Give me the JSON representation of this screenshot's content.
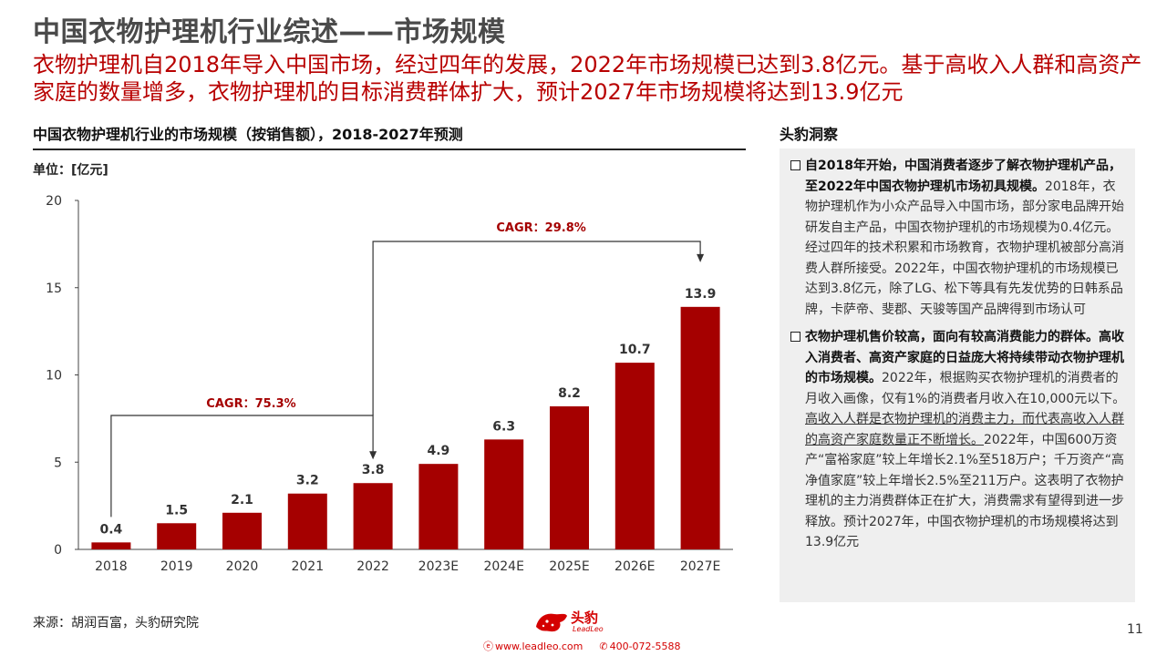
{
  "page": {
    "title": "中国衣物护理机行业综述——市场规模",
    "subtitle": "衣物护理机自2018年导入中国市场，经过四年的发展，2022年市场规模已达到3.8亿元。基于高收入人群和高资产家庭的数量增多，衣物护理机的目标消费群体扩大，预计2027年市场规模将达到13.9亿元",
    "page_number": "11",
    "source": "来源：胡润百富，头豹研究院"
  },
  "chart_data": {
    "type": "bar",
    "title": "中国衣物护理机行业的市场规模（按销售额），2018-2027年预测",
    "unit_label": "单位：[亿元]",
    "categories": [
      "2018",
      "2019",
      "2020",
      "2021",
      "2022",
      "2023E",
      "2024E",
      "2025E",
      "2026E",
      "2027E"
    ],
    "values": [
      0.4,
      1.5,
      2.1,
      3.2,
      3.8,
      4.9,
      6.3,
      8.2,
      10.7,
      13.9
    ],
    "value_labels": [
      "0.4",
      "1.5",
      "2.1",
      "3.2",
      "3.8",
      "4.9",
      "6.3",
      "8.2",
      "10.7",
      "13.9"
    ],
    "ylim": [
      0,
      20
    ],
    "yticks": [
      "0",
      "5",
      "10",
      "15",
      "20"
    ],
    "grid": false,
    "bar_color": "#a50000",
    "annotations": [
      {
        "label": "CAGR：75.3%",
        "from": "2018",
        "to": "2022"
      },
      {
        "label": "CAGR：29.8%",
        "from": "2022",
        "to": "2027E"
      }
    ]
  },
  "insights": {
    "header": "头豹洞察",
    "item1": {
      "bold": "自2018年开始，中国消费者逐步了解衣物护理机产品，至2022年中国衣物护理机市场初具规模。",
      "text": "2018年，衣物护理机作为小众产品导入中国市场，部分家电品牌开始研发自主产品，中国衣物护理机的市场规模为0.4亿元。经过四年的技术积累和市场教育，衣物护理机被部分高消费人群所接受。2022年，中国衣物护理机的市场规模已达到3.8亿元，除了LG、松下等具有先发优势的日韩系品牌，卡萨帝、斐郡、天骏等国产品牌得到市场认可"
    },
    "item2": {
      "bold": "衣物护理机售价较高，面向有较高消费能力的群体。高收入消费者、高资产家庭的日益庞大将持续带动衣物护理机的市场规模。",
      "text1": "2022年，根据购买衣物护理机的消费者的月收入画像，仅有1%的消费者月收入在10,000元以下。",
      "underlined": "高收入人群是衣物护理机的消费主力，而代表高收入人群的高资产家庭数量正不断增长。",
      "text2": "2022年，中国600万资产“富裕家庭”较上年增长2.1%至518万户；千万资产“高净值家庭”较上年增长2.5%至211万户。这表明了衣物护理机的主力消费群体正在扩大，消费需求有望得到进一步释放。预计2027年，中国衣物护理机的市场规模将达到13.9亿元"
    }
  },
  "footer": {
    "logo_text": "头豹",
    "logo_sub": "LeadLeo",
    "website": "www.leadleo.com",
    "phone": "400-072-5588",
    "brand_color": "#d40000"
  }
}
